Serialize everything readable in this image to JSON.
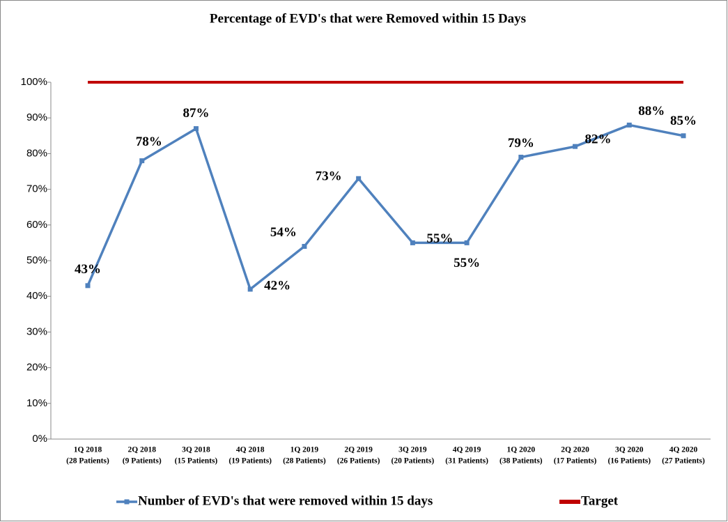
{
  "chart_data": {
    "type": "line",
    "title": "Percentage of EVD's that were Removed within 15 Days",
    "categories": [
      [
        "1Q 2018",
        "(28 Patients)"
      ],
      [
        "2Q 2018",
        "(9 Patients)"
      ],
      [
        "3Q 2018",
        "(15 Patients)"
      ],
      [
        "4Q 2018",
        "(19 Patients)"
      ],
      [
        "1Q 2019",
        "(28 Patients)"
      ],
      [
        "2Q 2019",
        "(26 Patients)"
      ],
      [
        "3Q 2019",
        "(20 Patients)"
      ],
      [
        "4Q 2019",
        "(31 Patients)"
      ],
      [
        "1Q 2020",
        "(38 Patients)"
      ],
      [
        "2Q 2020",
        "(17 Patients)"
      ],
      [
        "3Q 2020",
        "(16 Patients)"
      ],
      [
        "4Q 2020",
        "(27 Patients)"
      ]
    ],
    "series": [
      {
        "name": "Number of EVD's that were removed within 15 days",
        "color": "#4f81bd",
        "values": [
          43,
          78,
          87,
          42,
          54,
          73,
          55,
          55,
          79,
          82,
          88,
          85
        ],
        "value_labels": [
          "43%",
          "78%",
          "87%",
          "42%",
          "54%",
          "73%",
          "55%",
          "55%",
          "79%",
          "82%",
          "88%",
          "85%"
        ]
      },
      {
        "name": "Target",
        "color": "#c00000",
        "values": [
          100,
          100,
          100,
          100,
          100,
          100,
          100,
          100,
          100,
          100,
          100,
          100
        ]
      }
    ],
    "ylim": [
      0,
      100
    ],
    "yticks": [
      {
        "value": 0,
        "label": "0%"
      },
      {
        "value": 10,
        "label": "10%"
      },
      {
        "value": 20,
        "label": "20%"
      },
      {
        "value": 30,
        "label": "30%"
      },
      {
        "value": 40,
        "label": "40%"
      },
      {
        "value": 50,
        "label": "50%"
      },
      {
        "value": 60,
        "label": "60%"
      },
      {
        "value": 70,
        "label": "70%"
      },
      {
        "value": 80,
        "label": "80%"
      },
      {
        "value": 90,
        "label": "90%"
      },
      {
        "value": 100,
        "label": "100%"
      }
    ],
    "grid": false,
    "legend": "bottom"
  }
}
